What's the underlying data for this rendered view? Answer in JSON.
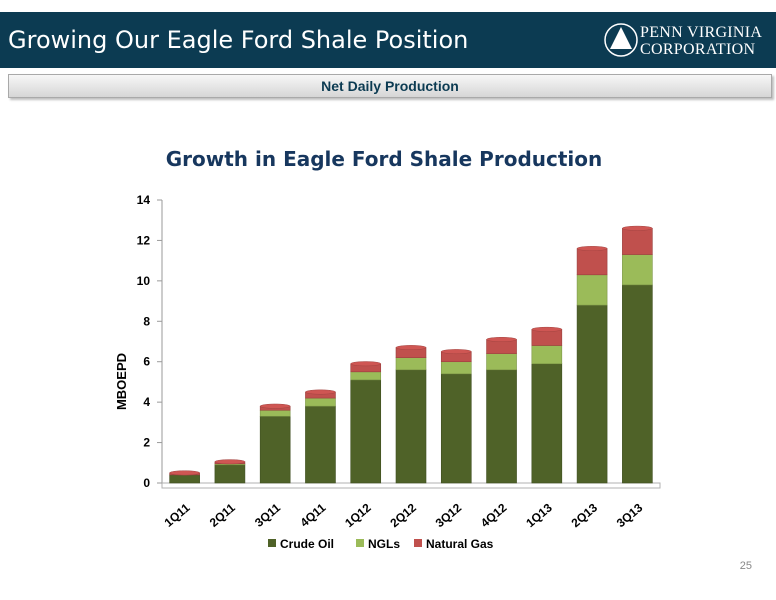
{
  "slide": {
    "title": "Growing Our Eagle Ford Shale Position",
    "subtitle": "Net Daily Production",
    "logo_line1": "PENN VIRGINIA",
    "logo_line2": "CORPORATION",
    "page_number": "25"
  },
  "colors": {
    "header_bg": "#0c3b52",
    "crude_oil": "#4f6228",
    "ngls": "#9bbb59",
    "natural_gas": "#c0504d",
    "title_text": "#17375e"
  },
  "chart_data": {
    "type": "bar",
    "stacked": true,
    "title": "Growth in Eagle Ford Shale Production",
    "xlabel": "",
    "ylabel": "MBOEPD",
    "ylim": [
      0,
      14
    ],
    "yticks": [
      0,
      2,
      4,
      6,
      8,
      10,
      12,
      14
    ],
    "grid": false,
    "legend_position": "bottom",
    "categories": [
      "1Q11",
      "2Q11",
      "3Q11",
      "4Q11",
      "1Q12",
      "2Q12",
      "3Q12",
      "4Q12",
      "1Q13",
      "2Q13",
      "3Q13"
    ],
    "series": [
      {
        "name": "Crude Oil",
        "color": "#4f6228",
        "values": [
          0.4,
          0.9,
          3.3,
          3.8,
          5.1,
          5.6,
          5.4,
          5.6,
          5.9,
          8.8,
          9.8
        ]
      },
      {
        "name": "NGLs",
        "color": "#9bbb59",
        "values": [
          0.0,
          0.05,
          0.3,
          0.4,
          0.4,
          0.6,
          0.6,
          0.8,
          0.9,
          1.5,
          1.5
        ]
      },
      {
        "name": "Natural Gas",
        "color": "#c0504d",
        "values": [
          0.1,
          0.1,
          0.2,
          0.3,
          0.4,
          0.5,
          0.5,
          0.7,
          0.8,
          1.3,
          1.3
        ]
      }
    ]
  }
}
